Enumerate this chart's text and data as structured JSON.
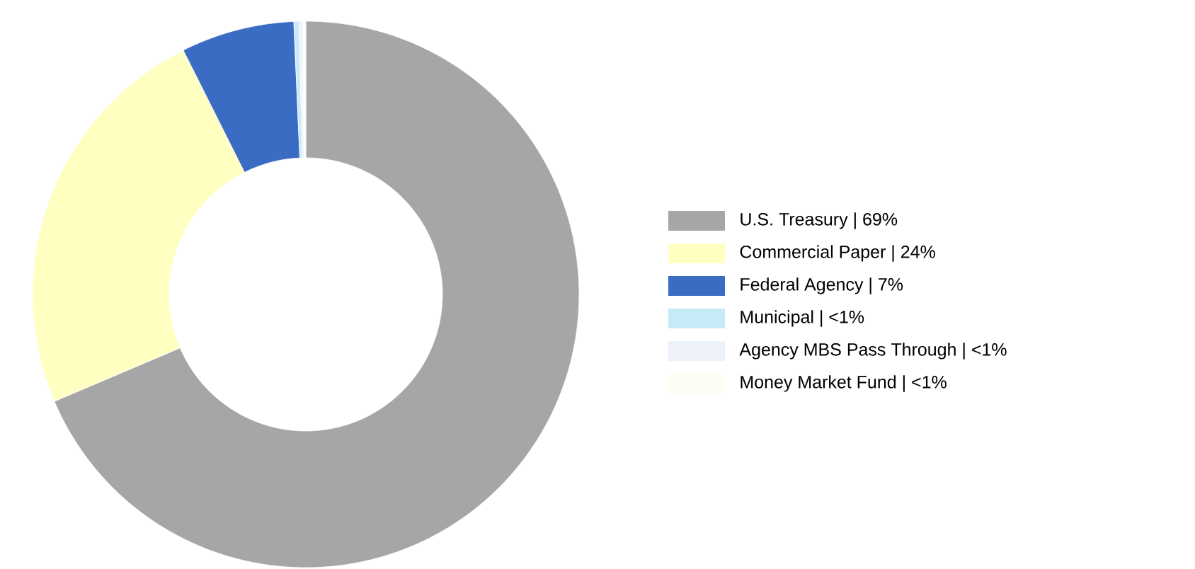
{
  "chart_data": {
    "type": "donut",
    "categories": [
      "U.S. Treasury | 69%",
      "Commercial Paper | 24%",
      "Federal Agency | 7%",
      "Municipal | <1%",
      "Agency MBS Pass Through | <1%",
      "Money Market Fund | <1%"
    ],
    "values": [
      68.6,
      24.0,
      6.7,
      0.3,
      0.2,
      0.2
    ],
    "colors": [
      "#a6a6a6",
      "#ffffc2",
      "#3b6cc4",
      "#c6ebf7",
      "#eef3fb",
      "#fdfdf3"
    ],
    "legend": "right"
  }
}
